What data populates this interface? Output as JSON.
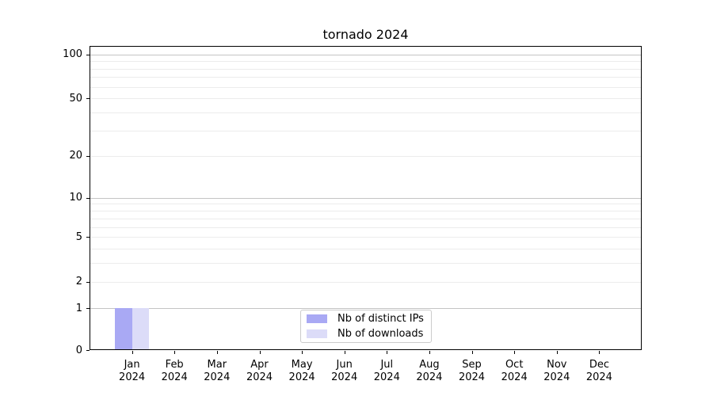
{
  "chart_data": {
    "type": "bar",
    "title": "tornado 2024",
    "x_categories": [
      {
        "month": "Jan",
        "year": "2024"
      },
      {
        "month": "Feb",
        "year": "2024"
      },
      {
        "month": "Mar",
        "year": "2024"
      },
      {
        "month": "Apr",
        "year": "2024"
      },
      {
        "month": "May",
        "year": "2024"
      },
      {
        "month": "Jun",
        "year": "2024"
      },
      {
        "month": "Jul",
        "year": "2024"
      },
      {
        "month": "Aug",
        "year": "2024"
      },
      {
        "month": "Sep",
        "year": "2024"
      },
      {
        "month": "Oct",
        "year": "2024"
      },
      {
        "month": "Nov",
        "year": "2024"
      },
      {
        "month": "Dec",
        "year": "2024"
      }
    ],
    "series": [
      {
        "name": "Nb of distinct IPs",
        "color": "#a9a9f4",
        "values": [
          1,
          0,
          0,
          0,
          0,
          0,
          0,
          0,
          0,
          0,
          0,
          0
        ]
      },
      {
        "name": "Nb of downloads",
        "color": "#dcdcf8",
        "values": [
          1,
          0,
          0,
          0,
          0,
          0,
          0,
          0,
          0,
          0,
          0,
          0
        ]
      }
    ],
    "y_axis": {
      "scale": "log10(value+1)",
      "labeled_ticks": [
        0,
        1,
        2,
        5,
        10,
        20,
        50,
        100
      ],
      "major_gridlines": [
        1,
        10,
        100
      ],
      "minor_gridlines": [
        2,
        3,
        4,
        5,
        6,
        7,
        8,
        9,
        20,
        30,
        40,
        50,
        60,
        70,
        80,
        90
      ],
      "range_min": 0,
      "range_max": 100,
      "grid": "on"
    },
    "legend": {
      "position": "bottom-center"
    },
    "colors": {
      "major_grid": "#c4c4c4",
      "minor_grid": "#ececec",
      "spine": "#000000",
      "legend_border": "#cccccc",
      "background": "#ffffff"
    }
  }
}
